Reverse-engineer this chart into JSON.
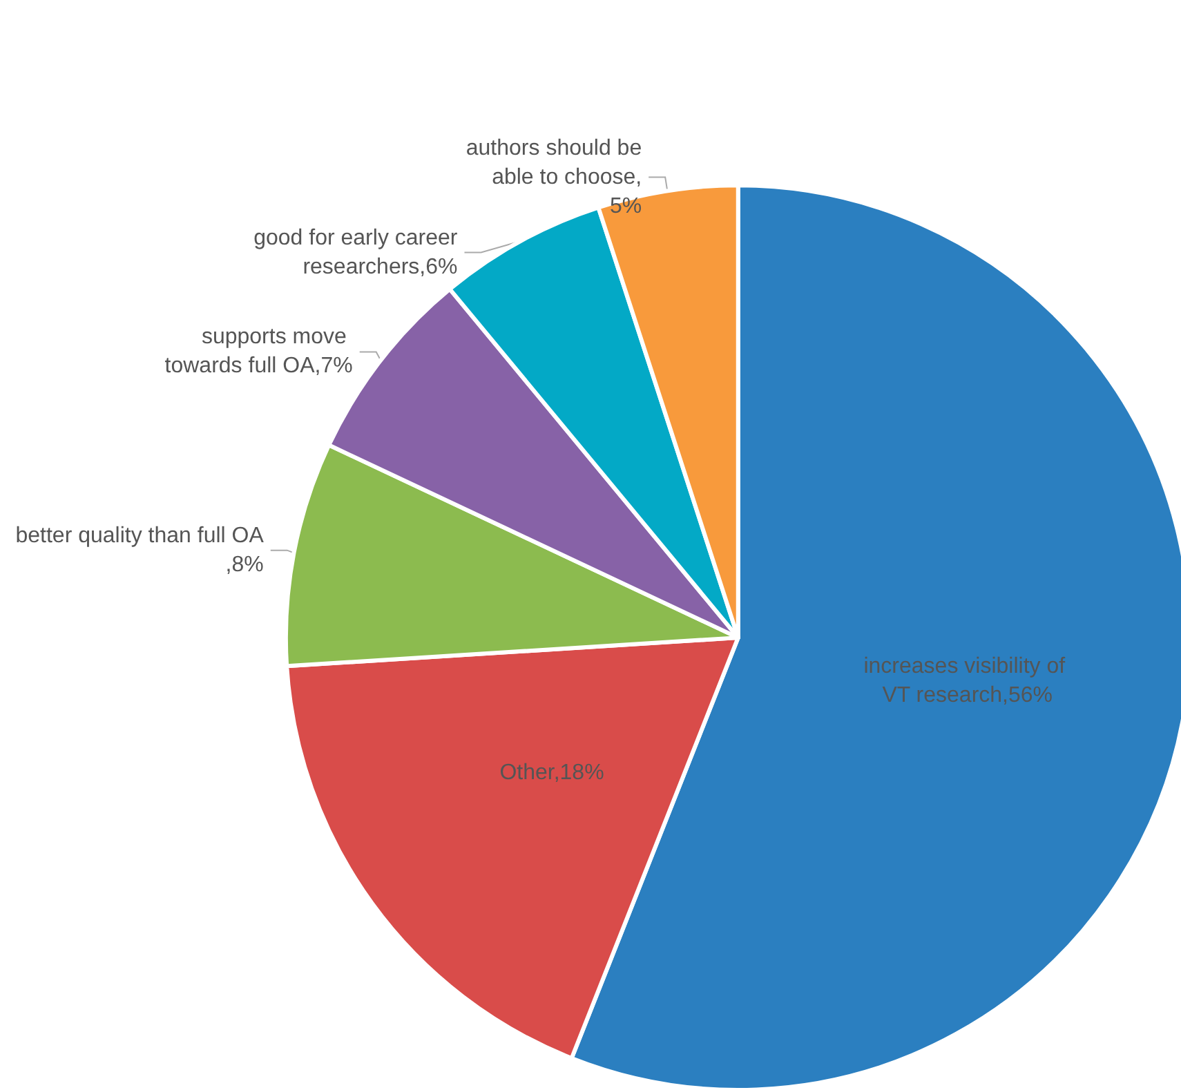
{
  "chart_data": {
    "type": "pie",
    "categories": [
      "increases visibility of VT research,56%",
      "Other,18%",
      "better quality than full OA,8%",
      "supports move towards full OA,7%",
      "good for early career researchers,6%",
      "authors should be able to choose,5%"
    ],
    "values": [
      56,
      18,
      8,
      7,
      6,
      5
    ],
    "colors": [
      "#2b7fc0",
      "#d94c4a",
      "#8cbb4f",
      "#8762a7",
      "#03a9c6",
      "#f89a3c"
    ],
    "legend": false
  }
}
